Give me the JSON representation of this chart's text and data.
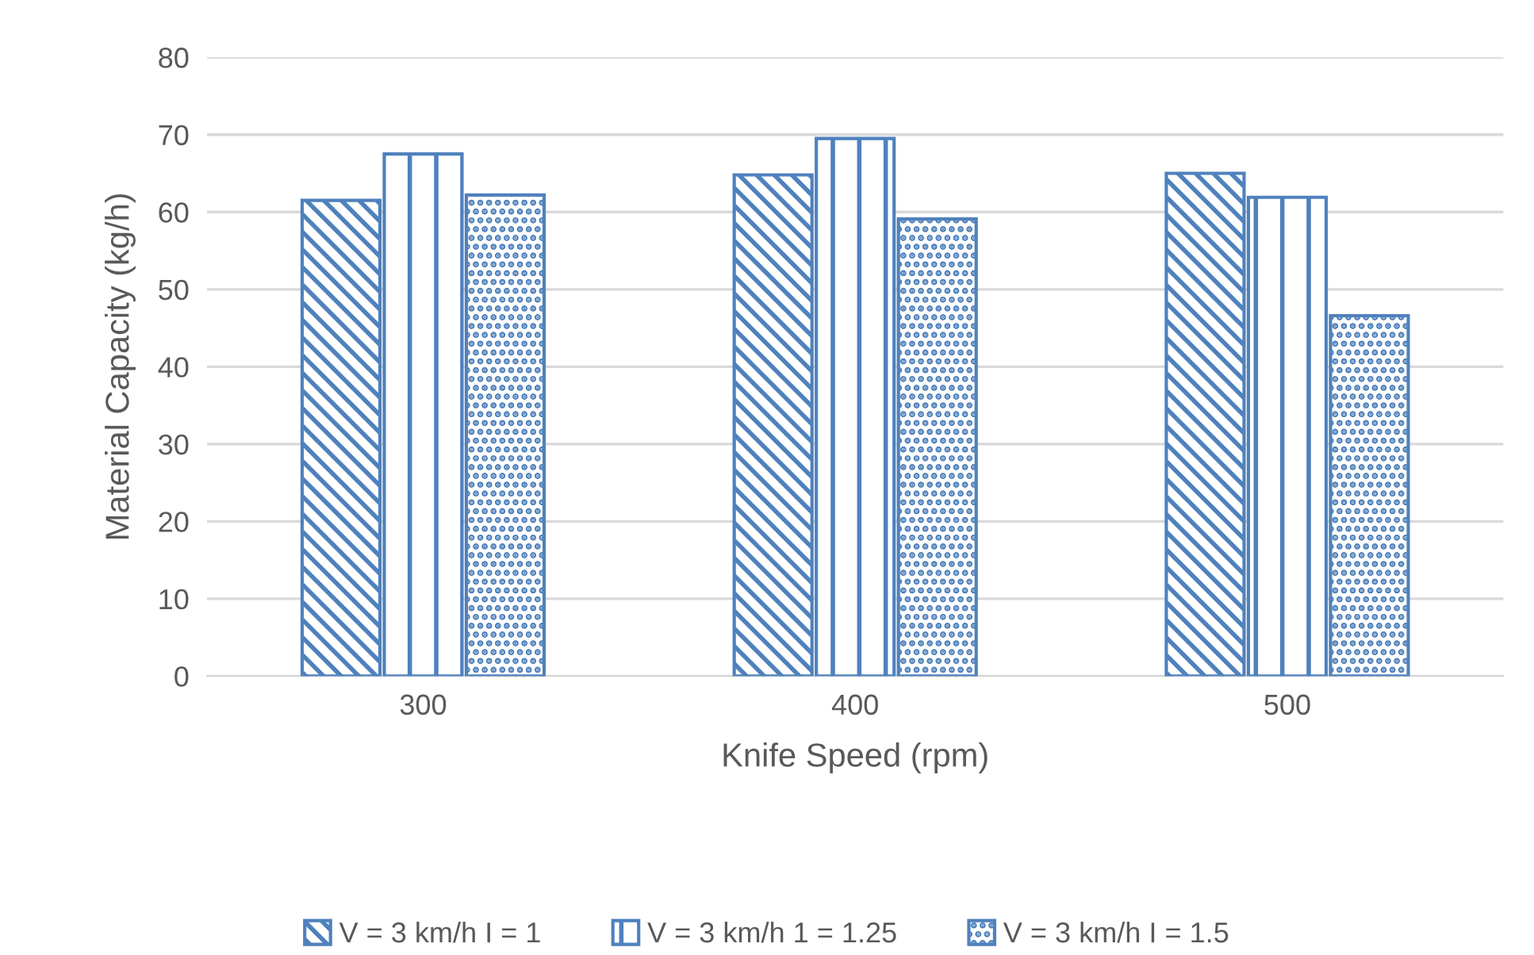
{
  "chart_data": {
    "type": "bar",
    "xlabel": "Knife Speed (rpm)",
    "ylabel": "Material Capacity (kg/h)",
    "categories": [
      "300",
      "400",
      "500"
    ],
    "series": [
      {
        "name": "V = 3 km/h I = 1",
        "color": "#4f81bd",
        "values": [
          61.5,
          64.8,
          65.0
        ]
      },
      {
        "name": "V = 3 km/h 1 = 1.25",
        "color": "#4f81bd",
        "values": [
          67.5,
          69.5,
          61.9
        ]
      },
      {
        "name": "V = 3 km/h I = 1.5",
        "color": "#4f81bd",
        "values": [
          62.2,
          59.1,
          46.6
        ]
      }
    ],
    "ylim": [
      0,
      80
    ],
    "yticks": [
      0,
      10,
      20,
      30,
      40,
      50,
      60,
      70,
      80
    ],
    "grid": "y",
    "legend": "bottom"
  }
}
